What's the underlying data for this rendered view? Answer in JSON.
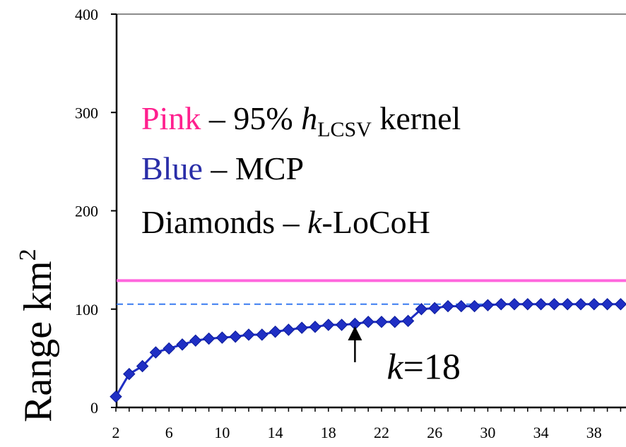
{
  "chart_data": {
    "type": "line",
    "ylabel": "Range",
    "ylabel_unit": "km",
    "ylabel_unit_exp": "2",
    "ylim": [
      0,
      400
    ],
    "yticks": [
      0,
      100,
      200,
      300,
      400
    ],
    "xlim": [
      2,
      40
    ],
    "xticks": [
      2,
      6,
      10,
      14,
      18,
      22,
      26,
      30,
      34,
      38
    ],
    "grid": false,
    "legend": [
      {
        "key": "Pink",
        "sep": " – ",
        "pre": "95% ",
        "italic": "h",
        "sub": "LCSV",
        "post": " kernel",
        "color": "#ff1f8e"
      },
      {
        "key": "Blue",
        "sep": " – ",
        "pre": "MCP",
        "color": "#2a2ea8"
      },
      {
        "key": "Diamonds",
        "sep": " – ",
        "italic": "k",
        "post": "-LoCoH",
        "color": "#000000"
      }
    ],
    "reference_lines": [
      {
        "name": "Pink",
        "value": 129,
        "color": "#ff66dd",
        "style": "solid"
      },
      {
        "name": "Blue",
        "value": 105,
        "color": "#3a7cf0",
        "style": "dashed"
      }
    ],
    "series": [
      {
        "color": "#1f2fc4",
        "x": [
          2,
          3,
          4,
          5,
          6,
          7,
          8,
          9,
          10,
          11,
          12,
          13,
          14,
          15,
          16,
          17,
          18,
          19,
          20,
          21,
          22,
          23,
          24,
          25,
          26,
          27,
          28,
          29,
          30,
          31,
          32,
          33,
          34,
          35,
          36,
          37,
          38,
          39,
          40
        ],
        "y": [
          11,
          34,
          42,
          56,
          60,
          64,
          68,
          70,
          71,
          72,
          74,
          74,
          77,
          79,
          81,
          82,
          84,
          84,
          85,
          87,
          87,
          87,
          88,
          100,
          101,
          103,
          103,
          103,
          104,
          105,
          105,
          105,
          105,
          105,
          105,
          105,
          105,
          105,
          105
        ]
      }
    ],
    "annotations": [
      {
        "type": "arrow",
        "x": 20,
        "y_tail": 46,
        "y_head": 84
      },
      {
        "type": "text",
        "x": 22.4,
        "y": 42,
        "italic": "k",
        "text": "=18"
      }
    ]
  }
}
